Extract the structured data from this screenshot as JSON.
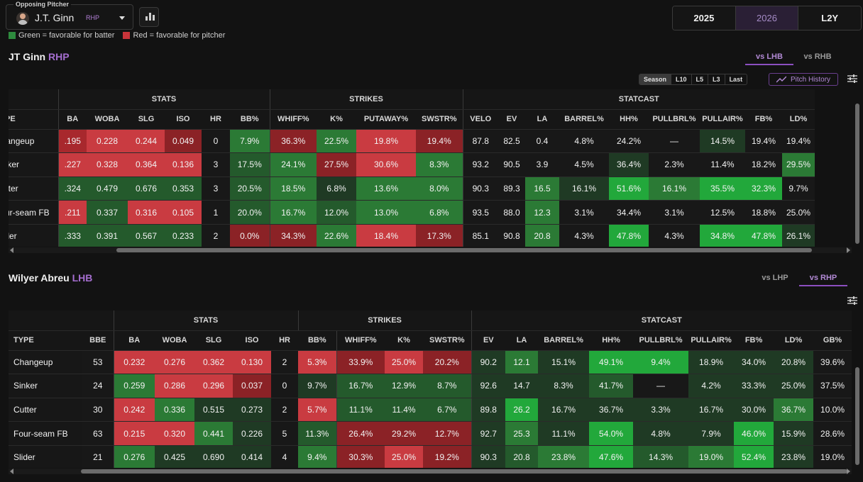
{
  "header": {
    "pitcher_label": "Opposing Pitcher",
    "pitcher_name": "J.T. Ginn",
    "pitcher_hand": "RHP",
    "legend_green": "Green = favorable for batter",
    "legend_red": "Red = favorable for pitcher",
    "seasons": [
      {
        "label": "2025",
        "active": false
      },
      {
        "label": "2026",
        "active": true
      },
      {
        "label": "L2Y",
        "active": false
      }
    ]
  },
  "colors": {
    "legend_green": "#2e8b3e",
    "legend_red": "#c8343a",
    "accent": "#8c4fc0"
  },
  "pitcher_section": {
    "title": "JT Ginn",
    "hand": "RHP",
    "tabs": [
      {
        "label": "vs LHB",
        "active": true
      },
      {
        "label": "vs RHB",
        "active": false
      }
    ],
    "ranges": [
      {
        "label": "Season",
        "active": true
      },
      {
        "label": "L10",
        "active": false
      },
      {
        "label": "L5",
        "active": false
      },
      {
        "label": "L3",
        "active": false
      },
      {
        "label": "Last",
        "active": false
      }
    ],
    "pitch_history_label": "Pitch History",
    "groups": [
      {
        "label": "STATS"
      },
      {
        "label": "STRIKES"
      },
      {
        "label": "STATCAST"
      }
    ],
    "columns": [
      "TYPE",
      "BA",
      "WOBA",
      "SLG",
      "ISO",
      "HR",
      "BB%",
      "WHIFF%",
      "K%",
      "PUTAWAY%",
      "SWSTR%",
      "VELO",
      "EV",
      "LA",
      "BARREL%",
      "HH%",
      "PULLBRL%",
      "PULLAIR%",
      "FB%",
      "LD%"
    ],
    "rows": [
      {
        "type": "Changeup",
        "cells": [
          ".195",
          "0.228",
          "0.244",
          "0.049",
          "0",
          "7.9%",
          "36.3%",
          "22.5%",
          "19.8%",
          "19.4%",
          "87.8",
          "82.5",
          "0.4",
          "4.8%",
          "24.2%",
          "—",
          "14.5%",
          "19.4%",
          "19.4%"
        ]
      },
      {
        "type": "Sinker",
        "cells": [
          ".227",
          "0.328",
          "0.364",
          "0.136",
          "3",
          "17.5%",
          "24.1%",
          "27.5%",
          "30.6%",
          "8.3%",
          "93.2",
          "90.5",
          "3.9",
          "4.5%",
          "36.4%",
          "2.3%",
          "11.4%",
          "18.2%",
          "29.5%"
        ]
      },
      {
        "type": "Cutter",
        "cells": [
          ".324",
          "0.479",
          "0.676",
          "0.353",
          "3",
          "20.5%",
          "18.5%",
          "6.8%",
          "13.6%",
          "8.0%",
          "90.3",
          "89.3",
          "16.5",
          "16.1%",
          "51.6%",
          "16.1%",
          "35.5%",
          "32.3%",
          "9.7%"
        ]
      },
      {
        "type": "Four-seam FB",
        "cells": [
          ".211",
          "0.337",
          "0.316",
          "0.105",
          "1",
          "20.0%",
          "16.7%",
          "12.0%",
          "13.0%",
          "6.8%",
          "93.5",
          "88.0",
          "12.3",
          "3.1%",
          "34.4%",
          "3.1%",
          "12.5%",
          "18.8%",
          "25.0%"
        ]
      },
      {
        "type": "Slider",
        "cells": [
          ".333",
          "0.391",
          "0.567",
          "0.233",
          "2",
          "0.0%",
          "34.3%",
          "22.6%",
          "18.4%",
          "17.3%",
          "85.1",
          "90.8",
          "20.8",
          "4.3%",
          "47.8%",
          "4.3%",
          "34.8%",
          "47.8%",
          "26.1%"
        ]
      }
    ]
  },
  "batter_section": {
    "title": "Wilyer Abreu",
    "hand": "LHB",
    "tabs": [
      {
        "label": "vs LHP",
        "active": false
      },
      {
        "label": "vs RHP",
        "active": true
      }
    ],
    "groups": [
      {
        "label": "STATS"
      },
      {
        "label": "STRIKES"
      },
      {
        "label": "STATCAST"
      }
    ],
    "columns": [
      "TYPE",
      "BBE",
      "BA",
      "WOBA",
      "SLG",
      "ISO",
      "HR",
      "BB%",
      "WHIFF%",
      "K%",
      "SWSTR%",
      "EV",
      "LA",
      "BARREL%",
      "HH%",
      "PULLBRL%",
      "PULLAIR%",
      "FB%",
      "LD%",
      "GB%"
    ],
    "rows": [
      {
        "type": "Changeup",
        "cells": [
          "53",
          "0.232",
          "0.276",
          "0.362",
          "0.130",
          "2",
          "5.3%",
          "33.9%",
          "25.0%",
          "20.2%",
          "90.2",
          "12.1",
          "15.1%",
          "49.1%",
          "9.4%",
          "18.9%",
          "34.0%",
          "20.8%",
          "39.6%"
        ]
      },
      {
        "type": "Sinker",
        "cells": [
          "24",
          "0.259",
          "0.286",
          "0.296",
          "0.037",
          "0",
          "9.7%",
          "16.7%",
          "12.9%",
          "8.7%",
          "92.6",
          "14.7",
          "8.3%",
          "41.7%",
          "—",
          "4.2%",
          "33.3%",
          "25.0%",
          "37.5%"
        ]
      },
      {
        "type": "Cutter",
        "cells": [
          "30",
          "0.242",
          "0.336",
          "0.515",
          "0.273",
          "2",
          "5.7%",
          "11.1%",
          "11.4%",
          "6.7%",
          "89.8",
          "26.2",
          "16.7%",
          "36.7%",
          "3.3%",
          "16.7%",
          "30.0%",
          "36.7%",
          "10.0%"
        ]
      },
      {
        "type": "Four-seam FB",
        "cells": [
          "63",
          "0.215",
          "0.320",
          "0.441",
          "0.226",
          "5",
          "11.3%",
          "26.4%",
          "29.2%",
          "12.7%",
          "92.7",
          "25.3",
          "11.1%",
          "54.0%",
          "4.8%",
          "7.9%",
          "46.0%",
          "15.9%",
          "28.6%"
        ]
      },
      {
        "type": "Slider",
        "cells": [
          "21",
          "0.276",
          "0.425",
          "0.690",
          "0.414",
          "4",
          "9.4%",
          "30.3%",
          "25.0%",
          "19.2%",
          "90.3",
          "20.8",
          "23.8%",
          "47.6%",
          "14.3%",
          "19.0%",
          "52.4%",
          "23.8%",
          "19.0%"
        ]
      }
    ]
  }
}
